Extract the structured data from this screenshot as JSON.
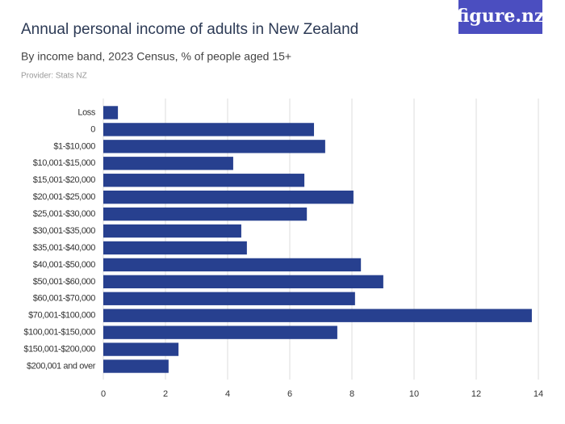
{
  "logo": "figure.nz",
  "chart_data": {
    "type": "bar",
    "orientation": "horizontal",
    "title": "Annual personal income of adults in New Zealand",
    "subtitle": "By income band, 2023 Census, % of people aged 15+",
    "source": "Provider: Stats NZ",
    "categories": [
      "Loss",
      "0",
      "$1-$10,000",
      "$10,001-$15,000",
      "$15,001-$20,000",
      "$20,001-$25,000",
      "$25,001-$30,000",
      "$30,001-$35,000",
      "$35,001-$40,000",
      "$40,001-$50,000",
      "$50,001-$60,000",
      "$60,001-$70,000",
      "$70,001-$100,000",
      "$100,001-$150,000",
      "$150,001-$200,000",
      "$200,001 and over"
    ],
    "values": [
      0.47,
      6.78,
      7.14,
      4.18,
      6.47,
      8.05,
      6.55,
      4.44,
      4.62,
      8.29,
      9.01,
      8.1,
      13.79,
      7.53,
      2.42,
      2.1
    ],
    "color": "#27408f",
    "xlim": [
      0,
      14
    ],
    "xticks": [
      0,
      2,
      4,
      6,
      8,
      10,
      12,
      14
    ],
    "grid": true
  }
}
